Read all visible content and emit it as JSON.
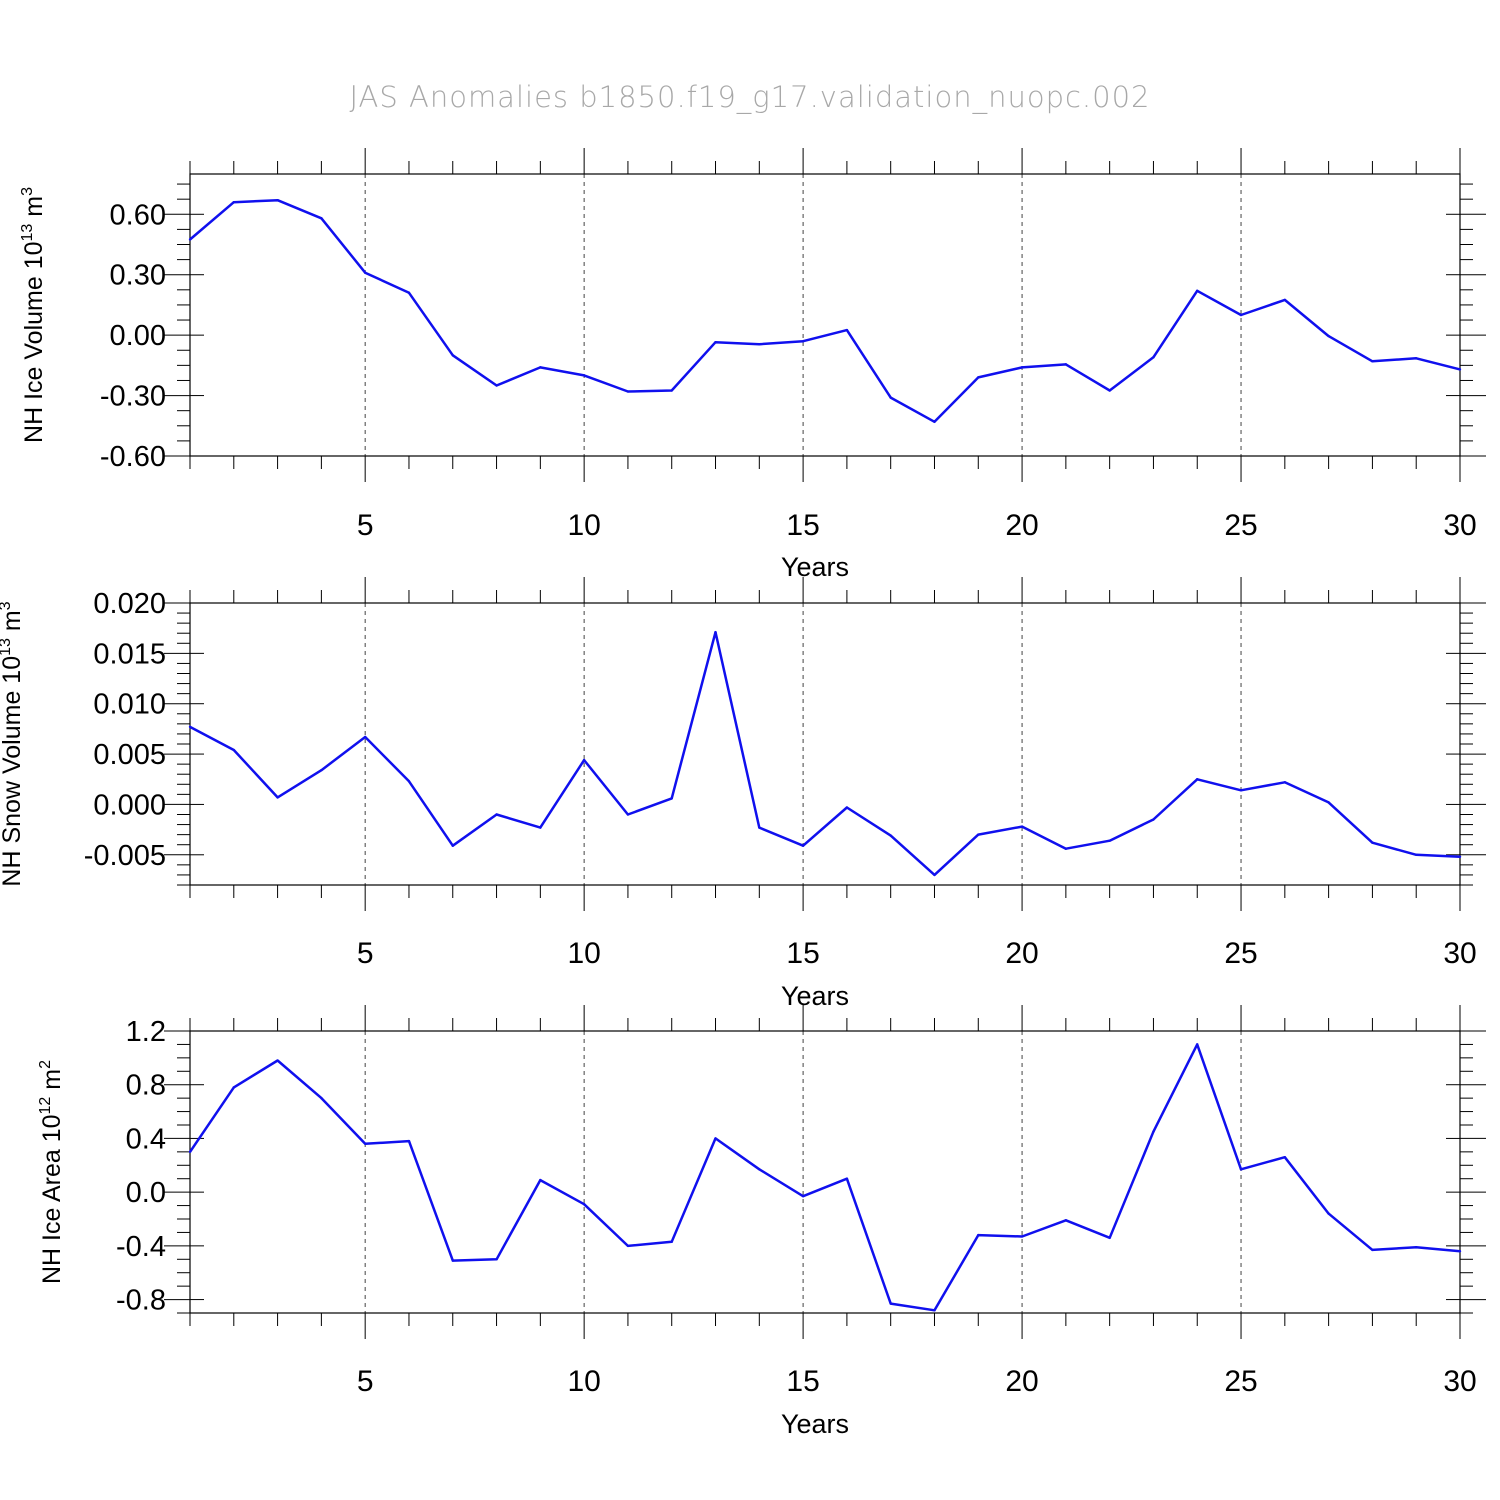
{
  "title": "JAS Anomalies b1850.f19_g17.validation_nuopc.002",
  "colors": {
    "line": "#1010ee",
    "axis": "#000000",
    "grid": "#444444",
    "title": "#a8a8a8"
  },
  "chart_data": [
    {
      "type": "line",
      "ylabel": "NH Ice Volume 10",
      "ylabel_sup": "13",
      "ylabel_unit": " m",
      "ylabel_unit_sup": "3",
      "xlabel": "Years",
      "xlim": [
        1,
        30
      ],
      "ylim": [
        -0.6,
        0.8
      ],
      "yticks": [
        -0.6,
        -0.3,
        0.0,
        0.3,
        0.6
      ],
      "ytick_labels": [
        "-0.60",
        "-0.30",
        "0.00",
        "0.30",
        "0.60"
      ],
      "yminor_step": 0.075,
      "xticks": [
        5,
        10,
        15,
        20,
        25,
        30
      ],
      "xtick_labels": [
        "5",
        "10",
        "15",
        "20",
        "25",
        "30"
      ],
      "x": [
        1,
        2,
        3,
        4,
        5,
        6,
        7,
        8,
        9,
        10,
        11,
        12,
        13,
        14,
        15,
        16,
        17,
        18,
        19,
        20,
        21,
        22,
        23,
        24,
        25,
        26,
        27,
        28,
        29,
        30
      ],
      "series": [
        {
          "name": "NH Ice Volume",
          "values": [
            0.475,
            0.66,
            0.67,
            0.58,
            0.31,
            0.21,
            -0.1,
            -0.25,
            -0.16,
            -0.2,
            -0.28,
            -0.275,
            -0.035,
            -0.045,
            -0.03,
            0.025,
            -0.31,
            -0.43,
            -0.21,
            -0.16,
            -0.145,
            -0.275,
            -0.11,
            0.22,
            0.1,
            0.175,
            -0.005,
            -0.13,
            -0.115,
            -0.17
          ]
        }
      ]
    },
    {
      "type": "line",
      "ylabel": "NH Snow Volume 10",
      "ylabel_sup": "13",
      "ylabel_unit": " m",
      "ylabel_unit_sup": "3",
      "xlabel": "Years",
      "xlim": [
        1,
        30
      ],
      "ylim": [
        -0.008,
        0.02
      ],
      "yticks": [
        -0.005,
        0.0,
        0.005,
        0.01,
        0.015,
        0.02
      ],
      "ytick_labels": [
        "-0.005",
        "0.000",
        "0.005",
        "0.010",
        "0.015",
        "0.020"
      ],
      "yminor_step": 0.001,
      "xticks": [
        5,
        10,
        15,
        20,
        25,
        30
      ],
      "xtick_labels": [
        "5",
        "10",
        "15",
        "20",
        "25",
        "30"
      ],
      "x": [
        1,
        2,
        3,
        4,
        5,
        6,
        7,
        8,
        9,
        10,
        11,
        12,
        13,
        14,
        15,
        16,
        17,
        18,
        19,
        20,
        21,
        22,
        23,
        24,
        25,
        26,
        27,
        28,
        29,
        30
      ],
      "series": [
        {
          "name": "NH Snow Volume",
          "values": [
            0.0077,
            0.0054,
            0.0007,
            0.0034,
            0.0067,
            0.0023,
            -0.0041,
            -0.001,
            -0.0023,
            0.0044,
            -0.001,
            0.0006,
            0.0171,
            -0.0023,
            -0.0041,
            -0.0003,
            -0.0031,
            -0.007,
            -0.003,
            -0.0022,
            -0.0044,
            -0.0036,
            -0.0015,
            0.0025,
            0.0014,
            0.0022,
            0.0002,
            -0.0038,
            -0.005,
            -0.0052
          ]
        }
      ]
    },
    {
      "type": "line",
      "ylabel": "NH Ice Area 10",
      "ylabel_sup": "12",
      "ylabel_unit": " m",
      "ylabel_unit_sup": "2",
      "xlabel": "Years",
      "xlim": [
        1,
        30
      ],
      "ylim": [
        -0.9,
        1.2
      ],
      "yticks": [
        -0.8,
        -0.4,
        0.0,
        0.4,
        0.8,
        1.2
      ],
      "ytick_labels": [
        "-0.8",
        "-0.4",
        "0.0",
        "0.4",
        "0.8",
        "1.2"
      ],
      "yminor_step": 0.1,
      "xticks": [
        5,
        10,
        15,
        20,
        25,
        30
      ],
      "xtick_labels": [
        "5",
        "10",
        "15",
        "20",
        "25",
        "30"
      ],
      "x": [
        1,
        2,
        3,
        4,
        5,
        6,
        7,
        8,
        9,
        10,
        11,
        12,
        13,
        14,
        15,
        16,
        17,
        18,
        19,
        20,
        21,
        22,
        23,
        24,
        25,
        26,
        27,
        28,
        29,
        30
      ],
      "series": [
        {
          "name": "NH Ice Area",
          "values": [
            0.3,
            0.78,
            0.98,
            0.7,
            0.36,
            0.38,
            -0.51,
            -0.5,
            0.09,
            -0.09,
            -0.4,
            -0.37,
            0.4,
            0.17,
            -0.03,
            0.1,
            -0.83,
            -0.88,
            -0.32,
            -0.33,
            -0.21,
            -0.34,
            0.45,
            1.1,
            0.17,
            0.26,
            -0.16,
            -0.43,
            -0.41,
            -0.44
          ]
        }
      ]
    }
  ]
}
